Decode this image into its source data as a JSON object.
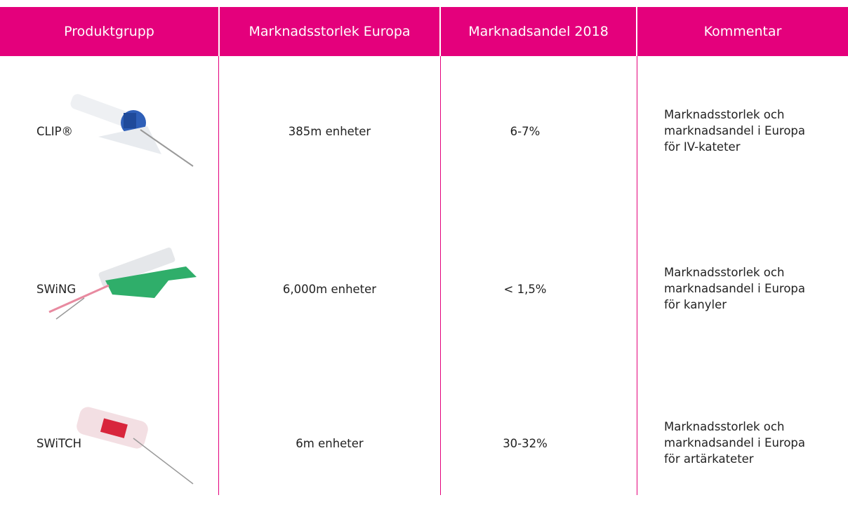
{
  "table": {
    "headers": [
      "Produktgrupp",
      "Marknadsstorlek Europa",
      "Marknadsandel 2018",
      "Kommentar"
    ],
    "rows": [
      {
        "product": "CLIP®",
        "size": "385m enheter",
        "share": "6-7%",
        "comment": [
          "Marknadsstorlek och",
          "marknadsandel i Europa",
          "för IV-kateter"
        ]
      },
      {
        "product": "SWiNG",
        "size": "6,000m enheter",
        "share": "< 1,5%",
        "comment": [
          "Marknadsstorlek och",
          "marknadsandel i Europa",
          "för kanyler"
        ]
      },
      {
        "product": "SWiTCH",
        "size": "6m enheter",
        "share": "30-32%",
        "comment": [
          "Marknadsstorlek och",
          "marknadsandel i Europa",
          "för artärkateter"
        ]
      }
    ]
  }
}
